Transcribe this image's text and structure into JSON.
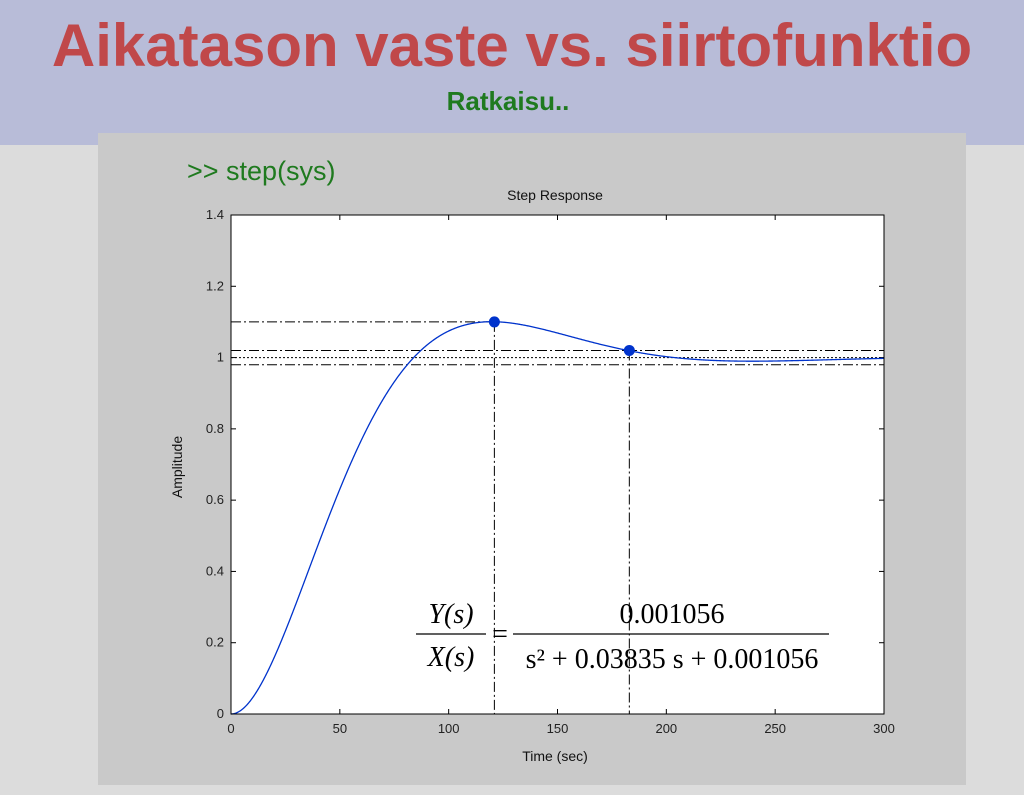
{
  "slide": {
    "title": "Aikatason vaste vs. siirtofunktio",
    "subtitle": "Ratkaisu..",
    "command": ">> step(sys)"
  },
  "colors": {
    "title": "#c0484a",
    "subtitle": "#1f7a1f",
    "header_bg": "#b8bcd8",
    "panel_bg": "#c9c9c9",
    "curve": "#0033cc"
  },
  "formula": {
    "lhs_num": "Y(s)",
    "lhs_den": "X(s)",
    "rhs_num": "0.001056",
    "rhs_den": "s² + 0.03835 s + 0.001056"
  },
  "chart_data": {
    "type": "line",
    "title": "Step Response",
    "xlabel": "Time (sec)",
    "ylabel": "Amplitude",
    "xlim": [
      0,
      300
    ],
    "ylim": [
      0,
      1.4
    ],
    "xticks": [
      0,
      50,
      100,
      150,
      200,
      250,
      300
    ],
    "yticks": [
      0,
      0.2,
      0.4,
      0.6,
      0.8,
      1,
      1.2,
      1.4
    ],
    "ytick_labels": [
      "0",
      "0.2",
      "0.4",
      "0.6",
      "0.8",
      "1",
      "1.2",
      "1.4"
    ],
    "grid": false,
    "system": {
      "numerator": 0.001056,
      "a1": 0.03835,
      "a0": 0.001056
    },
    "markers": [
      {
        "label": "peak",
        "x": 121,
        "y": 1.1
      },
      {
        "label": "settling",
        "x": 183,
        "y": 1.02
      }
    ],
    "reference_lines": {
      "peak_level": 1.1,
      "band_upper": 1.02,
      "final_value": 1.0,
      "band_lower": 0.98
    }
  }
}
